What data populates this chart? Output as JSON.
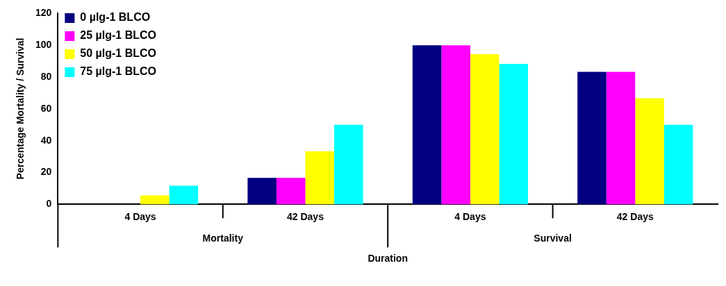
{
  "chart_data": {
    "type": "bar",
    "xlabel": "Duration",
    "ylabel": "Percentage Mortality / Survival",
    "categories": [
      "4 Days",
      "42 Days",
      "4 Days",
      "42 Days"
    ],
    "annotations": [
      "Mortality",
      "Survival"
    ],
    "series": [
      {
        "name": "0 µlg-1 BLCO",
        "color": "#000080",
        "values": [
          0,
          16.7,
          100,
          83.3
        ]
      },
      {
        "name": "25 µlg-1 BLCO",
        "color": "#ff00ff",
        "values": [
          0,
          16.7,
          100,
          83.3
        ]
      },
      {
        "name": "50 µlg-1 BLCO",
        "color": "#ffff00",
        "values": [
          5.6,
          33.3,
          94.4,
          66.7
        ]
      },
      {
        "name": "75 µlg-1 BLCO",
        "color": "#00ffff",
        "values": [
          11.7,
          50,
          88.3,
          50
        ]
      }
    ],
    "ylim": [
      0,
      120
    ],
    "yticks": [
      0,
      20,
      40,
      60,
      80,
      100,
      120
    ],
    "grid": false,
    "legend": "top left"
  }
}
